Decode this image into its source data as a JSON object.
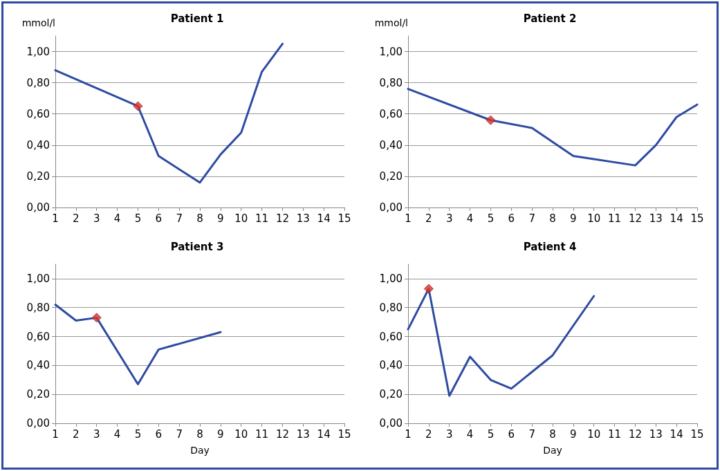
{
  "chart_data": [
    {
      "type": "line",
      "title": "Patient 1",
      "ylabel": "mmol/l",
      "xlim": [
        1,
        15
      ],
      "xticks": [
        1,
        2,
        3,
        4,
        5,
        6,
        7,
        8,
        9,
        10,
        11,
        12,
        13,
        14,
        15
      ],
      "ylim": [
        0,
        1.1
      ],
      "yticks": [
        {
          "value": 0,
          "label": "0,00"
        },
        {
          "value": 0.2,
          "label": "0,20"
        },
        {
          "value": 0.4,
          "label": "0,40"
        },
        {
          "value": 0.6,
          "label": "0,60"
        },
        {
          "value": 0.8,
          "label": "0,80"
        },
        {
          "value": 1,
          "label": "1,00"
        }
      ],
      "grid": "y",
      "series": [
        {
          "color": "#2e4ba3",
          "marker": "none",
          "line_style": "solid",
          "x": [
            1,
            5,
            6,
            8,
            9,
            10,
            11,
            12
          ],
          "values": [
            0.88,
            0.65,
            0.33,
            0.16,
            0.34,
            0.48,
            0.87,
            1.05
          ]
        },
        {
          "type": "scatter",
          "color": "#e0312a",
          "marker": "diamond",
          "x": [
            5
          ],
          "values": [
            0.65
          ]
        }
      ]
    },
    {
      "type": "line",
      "title": "Patient 2",
      "ylabel": "mmol/l",
      "xlim": [
        1,
        15
      ],
      "xticks": [
        1,
        2,
        3,
        4,
        5,
        6,
        7,
        8,
        9,
        10,
        11,
        12,
        13,
        14,
        15
      ],
      "ylim": [
        0,
        1.1
      ],
      "yticks": [
        {
          "value": 0,
          "label": "0,00"
        },
        {
          "value": 0.2,
          "label": "0,20"
        },
        {
          "value": 0.4,
          "label": "0,40"
        },
        {
          "value": 0.6,
          "label": "0,60"
        },
        {
          "value": 0.8,
          "label": "0,80"
        },
        {
          "value": 1,
          "label": "1,00"
        }
      ],
      "grid": "y",
      "series": [
        {
          "color": "#2e4ba3",
          "marker": "none",
          "line_style": "solid",
          "x": [
            1,
            5,
            7,
            9,
            12,
            13,
            14,
            15
          ],
          "values": [
            0.76,
            0.56,
            0.51,
            0.33,
            0.27,
            0.4,
            0.58,
            0.66
          ]
        },
        {
          "type": "scatter",
          "color": "#e0312a",
          "marker": "diamond",
          "x": [
            5
          ],
          "values": [
            0.56
          ]
        }
      ]
    },
    {
      "type": "line",
      "title": "Patient 3",
      "xlabel": "Day",
      "xlim": [
        1,
        15
      ],
      "xticks": [
        1,
        2,
        3,
        4,
        5,
        6,
        7,
        8,
        9,
        10,
        11,
        12,
        13,
        14,
        15
      ],
      "ylim": [
        0,
        1.1
      ],
      "yticks": [
        {
          "value": 0,
          "label": "0,00"
        },
        {
          "value": 0.2,
          "label": "0,20"
        },
        {
          "value": 0.4,
          "label": "0,40"
        },
        {
          "value": 0.6,
          "label": "0,60"
        },
        {
          "value": 0.8,
          "label": "0,80"
        },
        {
          "value": 1,
          "label": "1,00"
        }
      ],
      "grid": "y",
      "series": [
        {
          "color": "#2e4ba3",
          "marker": "none",
          "line_style": "solid",
          "x": [
            1,
            2,
            3,
            5,
            6,
            9
          ],
          "values": [
            0.82,
            0.71,
            0.73,
            0.27,
            0.51,
            0.63
          ]
        },
        {
          "type": "scatter",
          "color": "#e0312a",
          "marker": "diamond",
          "x": [
            3
          ],
          "values": [
            0.73
          ]
        }
      ]
    },
    {
      "type": "line",
      "title": "Patient 4",
      "xlabel": "Day",
      "xlim": [
        1,
        15
      ],
      "xticks": [
        1,
        2,
        3,
        4,
        5,
        6,
        7,
        8,
        9,
        10,
        11,
        12,
        13,
        14,
        15
      ],
      "ylim": [
        0,
        1.1
      ],
      "yticks": [
        {
          "value": 0,
          "label": "0,00"
        },
        {
          "value": 0.2,
          "label": "0,20"
        },
        {
          "value": 0.4,
          "label": "0,40"
        },
        {
          "value": 0.6,
          "label": "0,60"
        },
        {
          "value": 0.8,
          "label": "0,80"
        },
        {
          "value": 1,
          "label": "1,00"
        }
      ],
      "grid": "y",
      "series": [
        {
          "color": "#2e4ba3",
          "marker": "none",
          "line_style": "solid",
          "x": [
            1,
            2,
            3,
            4,
            5,
            6,
            8,
            10
          ],
          "values": [
            0.65,
            0.93,
            0.19,
            0.46,
            0.3,
            0.24,
            0.47,
            0.88
          ]
        },
        {
          "type": "scatter",
          "color": "#e0312a",
          "marker": "diamond",
          "x": [
            2
          ],
          "values": [
            0.93
          ]
        }
      ]
    }
  ]
}
